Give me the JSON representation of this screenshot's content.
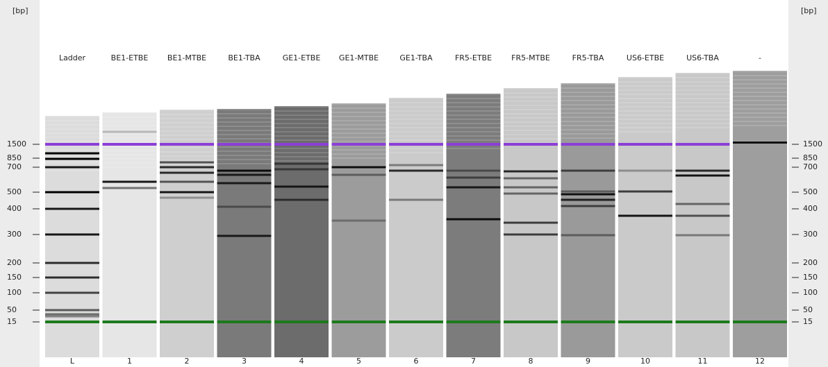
{
  "size_axis": {
    "unit": "[bp]",
    "ticks": [
      1500,
      850,
      700,
      500,
      400,
      300,
      200,
      150,
      100,
      50,
      15
    ]
  },
  "lanes": [
    {
      "name": "Ladder",
      "number": "L"
    },
    {
      "name": "BE1-ETBE",
      "number": "1"
    },
    {
      "name": "BE1-MTBE",
      "number": "2"
    },
    {
      "name": "BE1-TBA",
      "number": "3"
    },
    {
      "name": "GE1-ETBE",
      "number": "4"
    },
    {
      "name": "GE1-MTBE",
      "number": "5"
    },
    {
      "name": "GE1-TBA",
      "number": "6"
    },
    {
      "name": "FR5-ETBE",
      "number": "7"
    },
    {
      "name": "FR5-MTBE",
      "number": "8"
    },
    {
      "name": "FR5-TBA",
      "number": "9"
    },
    {
      "name": "US6-ETBE",
      "number": "10"
    },
    {
      "name": "US6-TBA",
      "number": "11"
    },
    {
      "name": "-",
      "number": "12"
    }
  ]
}
